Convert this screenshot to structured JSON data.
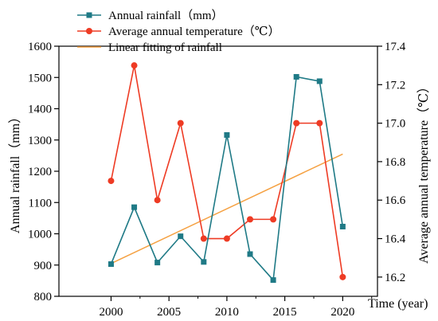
{
  "chart_data": {
    "type": "line",
    "x": [
      2000,
      2002,
      2004,
      2006,
      2008,
      2010,
      2012,
      2014,
      2016,
      2018,
      2020
    ],
    "series": [
      {
        "name": "Annual rainfall（mm）",
        "axis": "left",
        "color": "#1f7a86",
        "marker": "square",
        "values": [
          903,
          1085,
          908,
          992,
          910,
          1316,
          935,
          852,
          1502,
          1488,
          1023
        ]
      },
      {
        "name": "Average annual temperature（℃）",
        "axis": "right",
        "color": "#ee3b24",
        "marker": "circle",
        "values": [
          16.7,
          17.3,
          16.6,
          17.0,
          16.4,
          16.4,
          16.5,
          16.5,
          17.0,
          17.0,
          16.2
        ]
      },
      {
        "name": "Linear fitting of rainfall",
        "axis": "left",
        "color": "#f5a142",
        "marker": "none",
        "values": [
          905,
          1255
        ],
        "x": [
          2000,
          2020
        ]
      }
    ],
    "xlabel": "Time (year)",
    "ylabel_left": "Annual rainfall（mm）",
    "ylabel_right": "Average annual temperature（℃）",
    "xlim": [
      1995.5,
      2023
    ],
    "xticks": [
      "2000",
      "2005",
      "2010",
      "2015",
      "2020"
    ],
    "ylim_left": [
      800,
      1600
    ],
    "yticks_left": [
      "800",
      "900",
      "1000",
      "1100",
      "1200",
      "1300",
      "1400",
      "1500",
      "1600"
    ],
    "ylim_right": [
      16.1,
      17.4
    ],
    "yticks_right": [
      "16.2",
      "16.4",
      "16.6",
      "16.8",
      "17.0",
      "17.2",
      "17.4"
    ],
    "legend_position": "top-left",
    "grid": false
  }
}
